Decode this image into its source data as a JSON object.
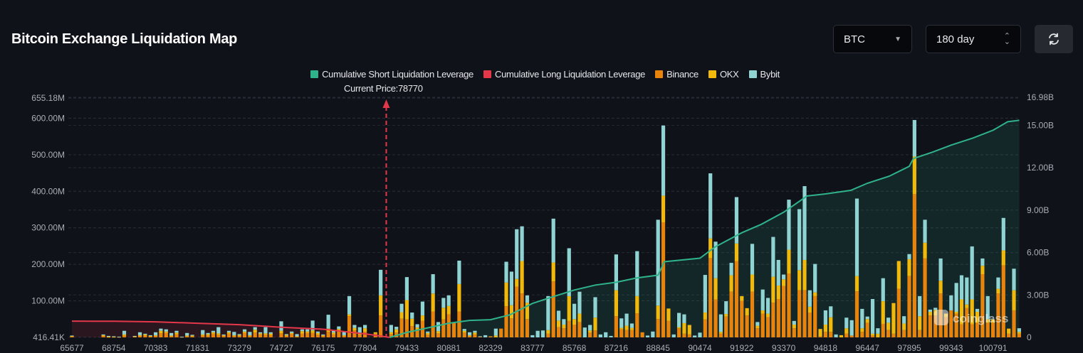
{
  "header": {
    "title": "Bitcoin Exchange Liquidation Map",
    "coin_select": "BTC",
    "range_select": "180 day",
    "refresh_icon": "refresh-icon"
  },
  "watermark": "coinglass",
  "colors": {
    "background": "#10121a",
    "binance": "#e8840c",
    "okx": "#f0b90b",
    "bybit": "#8fd3d3",
    "short_line": "#2fb38a",
    "long_line": "#e5374a"
  },
  "chart_data": {
    "type": "bar",
    "stacked": true,
    "title": "",
    "current_price_label": "Current Price:78770",
    "current_price": 78770,
    "legend": [
      "Cumulative Short Liquidation Leverage",
      "Cumulative Long Liquidation Leverage",
      "Binance",
      "OKX",
      "Bybit"
    ],
    "legend_position": "top",
    "grid": true,
    "x_ticks": [
      "65677",
      "68754",
      "70383",
      "71831",
      "73279",
      "74727",
      "76175",
      "77804",
      "79433",
      "80881",
      "82329",
      "83777",
      "85768",
      "87216",
      "88845",
      "90474",
      "91922",
      "93370",
      "94818",
      "96447",
      "97895",
      "99343",
      "100791"
    ],
    "x_tick_every_n_bars": 8,
    "y_left": {
      "unit": "USD",
      "ticks": [
        "416.41K",
        "100.00M",
        "200.00M",
        "300.00M",
        "400.00M",
        "500.00M",
        "600.00M",
        "655.18M"
      ],
      "range_millions": [
        0.41641,
        655.18
      ]
    },
    "y_right": {
      "unit": "USD",
      "ticks": [
        "0",
        "3.00B",
        "6.00B",
        "9.00B",
        "12.00B",
        "15.00B",
        "16.98B"
      ],
      "range_billions": [
        0,
        16.98
      ]
    },
    "series": [
      {
        "name": "Binance",
        "unit": "M",
        "values": [
          3,
          0,
          0,
          0,
          0,
          0,
          4,
          1,
          1,
          1,
          5,
          0,
          2,
          4,
          5,
          3,
          4,
          11,
          12,
          3,
          8,
          1,
          3,
          3,
          0,
          5,
          5,
          10,
          7,
          4,
          10,
          4,
          4,
          12,
          4,
          13,
          8,
          7,
          6,
          0,
          11,
          4,
          9,
          2,
          10,
          12,
          12,
          7,
          4,
          15,
          8,
          17,
          4,
          58,
          19,
          7,
          15,
          0,
          10,
          60,
          0,
          9,
          13,
          51,
          49,
          31,
          20,
          45,
          7,
          71,
          11,
          49,
          63,
          39,
          71,
          13,
          4,
          8,
          2,
          0,
          3,
          0,
          24,
          85,
          52,
          139,
          120,
          50,
          0,
          0,
          0,
          10,
          153,
          28,
          25,
          45,
          35,
          42,
          0,
          13,
          19,
          0,
          0,
          0,
          58,
          22,
          20,
          20,
          66,
          14,
          0,
          0,
          50,
          315,
          45,
          0,
          25,
          10,
          8,
          0,
          0,
          49,
          217,
          104,
          10,
          57,
          125,
          209,
          100,
          60,
          125,
          25,
          65,
          55,
          95,
          105,
          141,
          175,
          25,
          129,
          129,
          68,
          113,
          3,
          15,
          15,
          0,
          0,
          10,
          5,
          126,
          15,
          40,
          5,
          0,
          37,
          20,
          10,
          133,
          20,
          168,
          392,
          20,
          216,
          60,
          60,
          120,
          55,
          74,
          65,
          36,
          80,
          36,
          40,
          173,
          40,
          40,
          120,
          197,
          10,
          74,
          10
        ]
      },
      {
        "name": "OKX",
        "unit": "M",
        "values": [
          1,
          0,
          0,
          0,
          0,
          0,
          2,
          1,
          1,
          0,
          3,
          0,
          1,
          2,
          3,
          1,
          2,
          7,
          4,
          2,
          5,
          0,
          2,
          2,
          0,
          3,
          4,
          4,
          4,
          2,
          4,
          2,
          3,
          4,
          2,
          8,
          3,
          4,
          4,
          0,
          7,
          3,
          3,
          1,
          7,
          4,
          7,
          5,
          2,
          9,
          5,
          6,
          2,
          5,
          7,
          4,
          10,
          0,
          4,
          55,
          0,
          5,
          9,
          18,
          53,
          20,
          7,
          15,
          5,
          49,
          6,
          32,
          23,
          0,
          75,
          5,
          2,
          5,
          0,
          0,
          0,
          5,
          0,
          65,
          36,
          21,
          89,
          45,
          0,
          0,
          0,
          10,
          52,
          18,
          10,
          68,
          15,
          23,
          0,
          6,
          35,
          0,
          0,
          0,
          71,
          4,
          12,
          6,
          47,
          0,
          0,
          0,
          37,
          73,
          34,
          0,
          3,
          29,
          26,
          0,
          0,
          19,
          54,
          58,
          5,
          7,
          45,
          48,
          13,
          20,
          47,
          7,
          9,
          10,
          71,
          37,
          18,
          65,
          10,
          55,
          83,
          16,
          10,
          20,
          20,
          40,
          0,
          6,
          15,
          0,
          42,
          10,
          10,
          5,
          10,
          62,
          20,
          84,
          76,
          18,
          46,
          103,
          38,
          43,
          10,
          15,
          35,
          10,
          0,
          5,
          68,
          10,
          68,
          30,
          23,
          10,
          9,
          13,
          41,
          14,
          55,
          5
        ]
      },
      {
        "name": "Bybit",
        "unit": "M",
        "values": [
          1,
          0,
          0,
          0,
          0,
          0,
          2,
          2,
          1,
          1,
          10,
          0,
          1,
          8,
          2,
          2,
          8,
          6,
          6,
          7,
          5,
          1,
          7,
          2,
          0,
          12,
          3,
          4,
          17,
          2,
          4,
          9,
          2,
          6,
          9,
          7,
          3,
          17,
          4,
          0,
          26,
          2,
          4,
          6,
          5,
          6,
          27,
          4,
          2,
          38,
          5,
          7,
          10,
          50,
          8,
          17,
          9,
          0,
          0,
          70,
          0,
          20,
          7,
          23,
          63,
          17,
          9,
          38,
          4,
          53,
          25,
          27,
          29,
          0,
          64,
          5,
          8,
          5,
          1,
          6,
          0,
          19,
          0,
          57,
          92,
          136,
          95,
          20,
          6,
          18,
          19,
          93,
          120,
          27,
          15,
          131,
          42,
          60,
          27,
          15,
          56,
          8,
          14,
          4,
          98,
          26,
          33,
          12,
          123,
          0,
          5,
          16,
          235,
          192,
          0,
          8,
          39,
          24,
          0,
          5,
          13,
          103,
          178,
          100,
          48,
          35,
          34,
          127,
          0,
          0,
          84,
          10,
          57,
          43,
          109,
          70,
          13,
          137,
          10,
          167,
          202,
          45,
          78,
          0,
          39,
          30,
          8,
          0,
          29,
          42,
          212,
          53,
          7,
          95,
          15,
          63,
          14,
          0,
          0,
          20,
          14,
          100,
          55,
          63,
          6,
          6,
          61,
          0,
          41,
          79,
          66,
          74,
          145,
          8,
          20,
          63,
          0,
          31,
          89,
          0,
          59,
          10
        ]
      },
      {
        "name": "Cumulative Short Liquidation Leverage",
        "type": "line",
        "axis": "right",
        "unit": "B",
        "points": [
          [
            78770,
            0
          ],
          [
            79433,
            0.35
          ],
          [
            80881,
            1.0
          ],
          [
            81600,
            1.2
          ],
          [
            82329,
            1.25
          ],
          [
            83000,
            1.6
          ],
          [
            83777,
            2.4
          ],
          [
            84800,
            2.9
          ],
          [
            85768,
            3.35
          ],
          [
            86500,
            3.7
          ],
          [
            87216,
            3.9
          ],
          [
            88000,
            4.2
          ],
          [
            88845,
            4.4
          ],
          [
            89090,
            5.35
          ],
          [
            90474,
            5.6
          ],
          [
            91000,
            6.4
          ],
          [
            91922,
            7.4
          ],
          [
            92600,
            8.0
          ],
          [
            93370,
            8.85
          ],
          [
            94180,
            10.0
          ],
          [
            94818,
            10.15
          ],
          [
            95800,
            10.4
          ],
          [
            96447,
            10.9
          ],
          [
            97200,
            11.4
          ],
          [
            97895,
            12.1
          ],
          [
            98040,
            12.65
          ],
          [
            98700,
            13.1
          ],
          [
            99343,
            13.6
          ],
          [
            100100,
            14.1
          ],
          [
            100791,
            14.65
          ],
          [
            101300,
            15.25
          ],
          [
            101700,
            15.35
          ]
        ]
      },
      {
        "name": "Cumulative Long Liquidation Leverage",
        "type": "line",
        "axis": "right",
        "unit": "B",
        "points": [
          [
            65677,
            1.15
          ],
          [
            68754,
            1.14
          ],
          [
            70383,
            1.1
          ],
          [
            71831,
            1.0
          ],
          [
            73279,
            0.9
          ],
          [
            74727,
            0.72
          ],
          [
            76175,
            0.58
          ],
          [
            77804,
            0.25
          ],
          [
            78770,
            0
          ]
        ]
      }
    ]
  }
}
